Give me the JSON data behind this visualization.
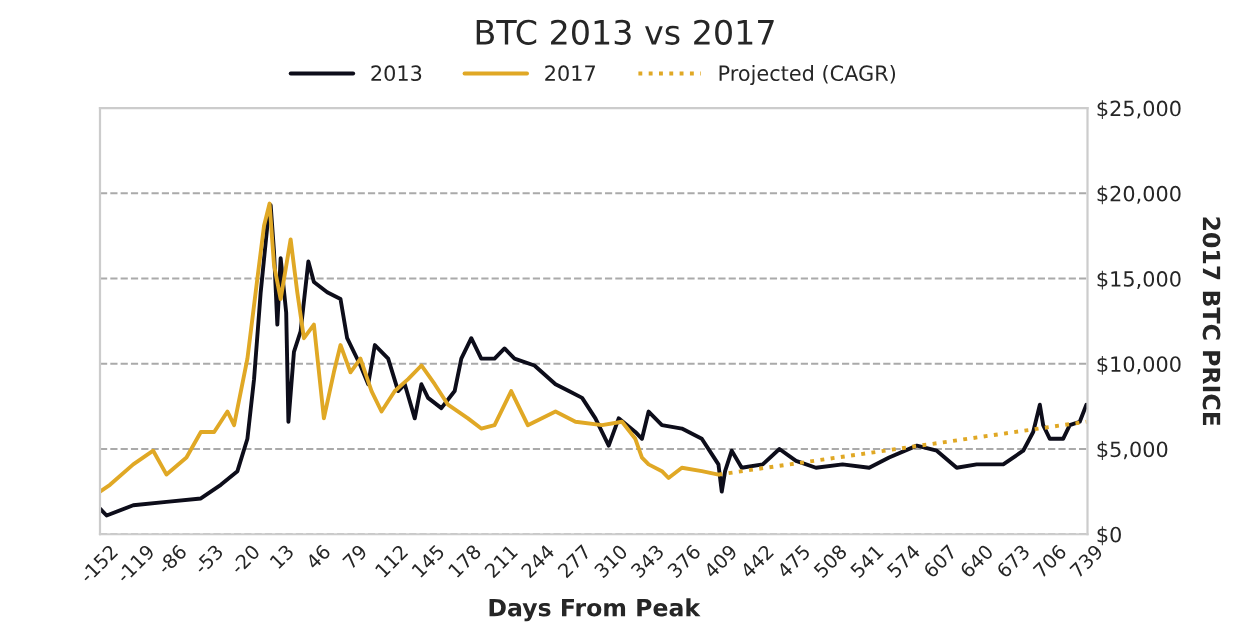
{
  "chart_data": {
    "type": "line",
    "title": "BTC 2013 vs 2017",
    "xlabel": "Days From Peak",
    "ylabel": "2017 BTC PRICE",
    "xlim": [
      -152,
      739
    ],
    "xticks": [
      -152,
      -119,
      -86,
      -53,
      -20,
      13,
      46,
      79,
      112,
      145,
      178,
      211,
      244,
      277,
      310,
      343,
      376,
      409,
      442,
      475,
      508,
      541,
      574,
      607,
      640,
      673,
      706,
      739
    ],
    "ylim": [
      0,
      25000
    ],
    "yticks": [
      {
        "value": 0,
        "label": "$0"
      },
      {
        "value": 5000,
        "label": "$5,000"
      },
      {
        "value": 10000,
        "label": "$10,000"
      },
      {
        "value": 15000,
        "label": "$15,000"
      },
      {
        "value": 20000,
        "label": "$20,000"
      },
      {
        "value": 25000,
        "label": "$25,000"
      }
    ],
    "grid": "y",
    "legend": "top",
    "marker": "none",
    "series": [
      {
        "name": "2013",
        "color": "#0d0d1a",
        "line_style": "solid",
        "x": [
          -152,
          -146,
          -122,
          -92,
          -61,
          -43,
          -28,
          -19,
          -13,
          -7,
          -1,
          2,
          5,
          8,
          11,
          16,
          18,
          23,
          29,
          36,
          41,
          53,
          65,
          71,
          83,
          90,
          96,
          108,
          117,
          123,
          132,
          138,
          144,
          156,
          168,
          174,
          183,
          192,
          204,
          213,
          222,
          240,
          259,
          271,
          283,
          295,
          307,
          316,
          331,
          337,
          343,
          355,
          373,
          391,
          400,
          406,
          409,
          412,
          418,
          427,
          446,
          461,
          476,
          494,
          518,
          542,
          560,
          585,
          603,
          621,
          639,
          663,
          681,
          690,
          696,
          699,
          705,
          717,
          723,
          732,
          738
        ],
        "values": [
          1500,
          1100,
          1700,
          1900,
          2100,
          2900,
          3700,
          5600,
          9100,
          14200,
          18100,
          19300,
          16600,
          12300,
          16200,
          13000,
          6600,
          10700,
          11900,
          16000,
          14800,
          14200,
          13800,
          11500,
          9900,
          8800,
          11100,
          10300,
          8400,
          8800,
          6800,
          8800,
          8000,
          7400,
          8400,
          10300,
          11500,
          10300,
          10300,
          10900,
          10300,
          9900,
          8800,
          8400,
          8000,
          6800,
          5200,
          6800,
          6000,
          5600,
          7200,
          6400,
          6200,
          5600,
          4700,
          4100,
          2500,
          3700,
          4900,
          3900,
          4100,
          5000,
          4300,
          3900,
          4100,
          3900,
          4500,
          5200,
          4900,
          3900,
          4100,
          4100,
          4900,
          6000,
          7600,
          6400,
          5600,
          5600,
          6400,
          6600,
          7600
        ]
      },
      {
        "name": "2017",
        "color": "#e0a825",
        "line_style": "solid",
        "x": [
          -152,
          -143,
          -122,
          -104,
          -92,
          -74,
          -61,
          -49,
          -37,
          -31,
          -19,
          -10,
          -4,
          1,
          5,
          11,
          20,
          26,
          32,
          41,
          50,
          59,
          65,
          74,
          83,
          93,
          102,
          114,
          126,
          138,
          150,
          162,
          180,
          192,
          204,
          219,
          234,
          259,
          277,
          301,
          319,
          331,
          337,
          343,
          355,
          361,
          373,
          391,
          406
        ],
        "values": [
          2500,
          2900,
          4100,
          4900,
          3500,
          4500,
          6000,
          6000,
          7200,
          6400,
          10300,
          15000,
          18100,
          19400,
          15800,
          13800,
          17300,
          14200,
          11500,
          12300,
          6800,
          9500,
          11100,
          9500,
          10300,
          8400,
          7200,
          8400,
          9100,
          9900,
          8800,
          7600,
          6800,
          6200,
          6400,
          8400,
          6400,
          7200,
          6600,
          6400,
          6600,
          5600,
          4500,
          4100,
          3700,
          3300,
          3900,
          3700,
          3500
        ]
      },
      {
        "name": "Projected (CAGR)",
        "color": "#e0a825",
        "line_style": "dotted",
        "x": [
          406,
          738
        ],
        "values": [
          3500,
          6600
        ]
      }
    ]
  }
}
